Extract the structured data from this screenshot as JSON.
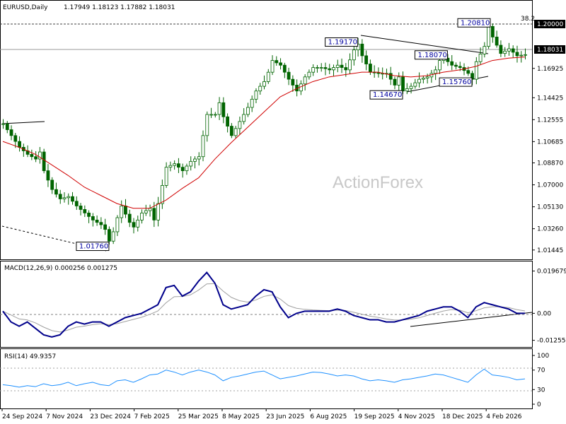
{
  "header": {
    "symbol": "EURUSD,Daily",
    "ohlc": "1.17949 1.18123 1.17882 1.18031"
  },
  "watermark": "ActionForex",
  "colors": {
    "candle": "#006400",
    "ma": "#d00000",
    "macd_line": "#00008b",
    "signal_line": "#a0a0a0",
    "rsi_line": "#1e90ff",
    "grid": "#c0c0c0"
  },
  "price_axis": {
    "ticks": [
      "1.20000",
      "1.18031",
      "1.16925",
      "1.14425",
      "1.12555",
      "1.10685",
      "1.08870",
      "1.07000",
      "1.05130",
      "1.03260",
      "1.01445"
    ],
    "tick_values": [
      1.2,
      1.18031,
      1.16925,
      1.14425,
      1.12555,
      1.10685,
      1.0887,
      1.07,
      1.0513,
      1.0326,
      1.01445
    ],
    "current": "1.18031",
    "level_1200": "1.20000",
    "fib_label": "38.2"
  },
  "date_axis": [
    "24 Sep 2024",
    "7 Nov 2024",
    "23 Dec 2024",
    "7 Feb 2025",
    "25 Mar 2025",
    "8 May 2025",
    "23 Jun 2025",
    "6 Aug 2025",
    "19 Sep 2025",
    "4 Nov 2025",
    "18 Dec 2025",
    "4 Feb 2026"
  ],
  "price_labels": [
    {
      "text": "1.20810",
      "x_idx": 119.5,
      "y_val": 1.2081
    },
    {
      "text": "1.19170",
      "x_idx": 87,
      "y_val": 1.1917
    },
    {
      "text": "1.18070",
      "x_idx": 109,
      "y_val": 1.1807
    },
    {
      "text": "1.15760",
      "x_idx": 115,
      "y_val": 1.1576
    },
    {
      "text": "1.14670",
      "x_idx": 98,
      "y_val": 1.1467
    },
    {
      "text": "1.01760",
      "x_idx": 26,
      "y_val": 1.0176
    }
  ],
  "macd": {
    "title": "MACD(12,26,9) 0.000256 0.001275",
    "ticks": [
      "0.019679",
      "0.00",
      "-0.012552"
    ],
    "tick_values": [
      0.019679,
      0.0,
      -0.012552
    ]
  },
  "rsi": {
    "title": "RSI(14) 49.9357",
    "ticks": [
      "100",
      "70",
      "30",
      "0"
    ],
    "tick_values": [
      100,
      70,
      30,
      0
    ]
  },
  "chart_data": {
    "type": "line",
    "title": "EURUSD,Daily",
    "xlabel": "",
    "ylabel": "",
    "x": [
      "24 Sep 2024",
      "7 Nov 2024",
      "23 Dec 2024",
      "7 Feb 2025",
      "25 Mar 2025",
      "8 May 2025",
      "23 Jun 2025",
      "6 Aug 2025",
      "19 Sep 2025",
      "4 Nov 2025",
      "18 Dec 2025",
      "4 Feb 2026"
    ],
    "ylim": [
      1.0095,
      1.2155
    ],
    "series": [
      {
        "name": "",
        "values": [
          1.12,
          1.085,
          1.04,
          1.035,
          1.08,
          1.125,
          1.155,
          1.17,
          1.175,
          1.155,
          1.17,
          1.181
        ]
      }
    ],
    "price_path": [
      [
        0,
        1.122
      ],
      [
        2,
        1.112
      ],
      [
        4,
        1.102
      ],
      [
        6,
        1.096
      ],
      [
        8,
        1.092
      ],
      [
        9,
        1.098
      ],
      [
        10,
        1.082
      ],
      [
        12,
        1.066
      ],
      [
        14,
        1.058
      ],
      [
        16,
        1.06
      ],
      [
        18,
        1.052
      ],
      [
        20,
        1.046
      ],
      [
        22,
        1.04
      ],
      [
        24,
        1.036
      ],
      [
        25,
        1.032
      ],
      [
        26,
        1.022
      ],
      [
        27,
        1.03
      ],
      [
        28,
        1.042
      ],
      [
        29,
        1.052
      ],
      [
        30,
        1.045
      ],
      [
        31,
        1.038
      ],
      [
        32,
        1.034
      ],
      [
        34,
        1.046
      ],
      [
        36,
        1.05
      ],
      [
        37,
        1.04
      ],
      [
        38,
        1.054
      ],
      [
        40,
        1.085
      ],
      [
        42,
        1.088
      ],
      [
        44,
        1.082
      ],
      [
        46,
        1.09
      ],
      [
        48,
        1.094
      ],
      [
        50,
        1.13
      ],
      [
        52,
        1.13
      ],
      [
        53,
        1.14
      ],
      [
        54,
        1.128
      ],
      [
        55,
        1.12
      ],
      [
        56,
        1.112
      ],
      [
        58,
        1.124
      ],
      [
        60,
        1.136
      ],
      [
        62,
        1.15
      ],
      [
        64,
        1.158
      ],
      [
        65,
        1.166
      ],
      [
        66,
        1.176
      ],
      [
        68,
        1.172
      ],
      [
        70,
        1.16
      ],
      [
        72,
        1.15
      ],
      [
        74,
        1.162
      ],
      [
        76,
        1.17
      ],
      [
        78,
        1.17
      ],
      [
        80,
        1.168
      ],
      [
        82,
        1.172
      ],
      [
        84,
        1.168
      ],
      [
        86,
        1.185
      ],
      [
        87,
        1.19
      ],
      [
        88,
        1.18
      ],
      [
        90,
        1.166
      ],
      [
        92,
        1.165
      ],
      [
        94,
        1.165
      ],
      [
        96,
        1.155
      ],
      [
        97,
        1.162
      ],
      [
        98,
        1.15
      ],
      [
        100,
        1.154
      ],
      [
        102,
        1.16
      ],
      [
        104,
        1.162
      ],
      [
        106,
        1.168
      ],
      [
        107,
        1.176
      ],
      [
        108,
        1.178
      ],
      [
        110,
        1.172
      ],
      [
        112,
        1.17
      ],
      [
        114,
        1.165
      ],
      [
        115,
        1.16
      ],
      [
        116,
        1.175
      ],
      [
        118,
        1.188
      ],
      [
        119,
        1.205
      ],
      [
        120,
        1.196
      ],
      [
        122,
        1.182
      ],
      [
        124,
        1.186
      ],
      [
        126,
        1.18
      ],
      [
        128,
        1.181
      ]
    ],
    "ma_path": [
      [
        0,
        1.107
      ],
      [
        4,
        1.102
      ],
      [
        8,
        1.096
      ],
      [
        12,
        1.087
      ],
      [
        16,
        1.078
      ],
      [
        20,
        1.068
      ],
      [
        24,
        1.061
      ],
      [
        28,
        1.054
      ],
      [
        32,
        1.05
      ],
      [
        36,
        1.05
      ],
      [
        40,
        1.057
      ],
      [
        44,
        1.067
      ],
      [
        48,
        1.076
      ],
      [
        52,
        1.092
      ],
      [
        56,
        1.106
      ],
      [
        60,
        1.119
      ],
      [
        64,
        1.132
      ],
      [
        68,
        1.145
      ],
      [
        72,
        1.152
      ],
      [
        76,
        1.158
      ],
      [
        80,
        1.162
      ],
      [
        84,
        1.164
      ],
      [
        88,
        1.166
      ],
      [
        92,
        1.166
      ],
      [
        96,
        1.163
      ],
      [
        100,
        1.162
      ],
      [
        104,
        1.163
      ],
      [
        108,
        1.166
      ],
      [
        112,
        1.168
      ],
      [
        116,
        1.171
      ],
      [
        120,
        1.176
      ],
      [
        124,
        1.178
      ],
      [
        128,
        1.179
      ]
    ],
    "macd_path": [
      [
        0,
        0.001
      ],
      [
        2,
        -0.004
      ],
      [
        4,
        -0.006
      ],
      [
        6,
        -0.004
      ],
      [
        8,
        -0.007
      ],
      [
        10,
        -0.01
      ],
      [
        12,
        -0.011
      ],
      [
        14,
        -0.01
      ],
      [
        16,
        -0.006
      ],
      [
        18,
        -0.004
      ],
      [
        20,
        -0.005
      ],
      [
        22,
        -0.004
      ],
      [
        24,
        -0.004
      ],
      [
        26,
        -0.006
      ],
      [
        28,
        -0.004
      ],
      [
        30,
        -0.002
      ],
      [
        32,
        -0.001
      ],
      [
        34,
        0.0
      ],
      [
        36,
        0.002
      ],
      [
        38,
        0.004
      ],
      [
        40,
        0.012
      ],
      [
        42,
        0.013
      ],
      [
        44,
        0.008
      ],
      [
        46,
        0.01
      ],
      [
        48,
        0.015
      ],
      [
        50,
        0.019
      ],
      [
        52,
        0.014
      ],
      [
        54,
        0.004
      ],
      [
        56,
        0.002
      ],
      [
        58,
        0.003
      ],
      [
        60,
        0.004
      ],
      [
        62,
        0.008
      ],
      [
        64,
        0.011
      ],
      [
        66,
        0.01
      ],
      [
        68,
        0.003
      ],
      [
        70,
        -0.002
      ],
      [
        72,
        0.0
      ],
      [
        74,
        0.001
      ],
      [
        76,
        0.001
      ],
      [
        78,
        0.001
      ],
      [
        80,
        0.001
      ],
      [
        82,
        0.002
      ],
      [
        84,
        0.001
      ],
      [
        86,
        -0.001
      ],
      [
        88,
        -0.002
      ],
      [
        90,
        -0.003
      ],
      [
        92,
        -0.003
      ],
      [
        94,
        -0.004
      ],
      [
        96,
        -0.004
      ],
      [
        98,
        -0.003
      ],
      [
        100,
        -0.002
      ],
      [
        102,
        -0.001
      ],
      [
        104,
        0.001
      ],
      [
        106,
        0.002
      ],
      [
        108,
        0.003
      ],
      [
        110,
        0.003
      ],
      [
        112,
        0.001
      ],
      [
        114,
        -0.002
      ],
      [
        116,
        0.003
      ],
      [
        118,
        0.005
      ],
      [
        120,
        0.004
      ],
      [
        122,
        0.003
      ],
      [
        124,
        0.002
      ],
      [
        126,
        0.0
      ],
      [
        128,
        0.0
      ]
    ],
    "rsi_path": [
      [
        0,
        40
      ],
      [
        2,
        38
      ],
      [
        4,
        35
      ],
      [
        6,
        38
      ],
      [
        8,
        36
      ],
      [
        10,
        42
      ],
      [
        12,
        38
      ],
      [
        14,
        40
      ],
      [
        16,
        45
      ],
      [
        18,
        38
      ],
      [
        20,
        42
      ],
      [
        22,
        45
      ],
      [
        24,
        40
      ],
      [
        26,
        38
      ],
      [
        28,
        48
      ],
      [
        30,
        50
      ],
      [
        32,
        45
      ],
      [
        34,
        52
      ],
      [
        36,
        60
      ],
      [
        38,
        62
      ],
      [
        40,
        70
      ],
      [
        42,
        66
      ],
      [
        44,
        60
      ],
      [
        46,
        66
      ],
      [
        48,
        70
      ],
      [
        50,
        66
      ],
      [
        52,
        60
      ],
      [
        54,
        48
      ],
      [
        56,
        55
      ],
      [
        58,
        58
      ],
      [
        60,
        62
      ],
      [
        62,
        66
      ],
      [
        64,
        68
      ],
      [
        66,
        60
      ],
      [
        68,
        52
      ],
      [
        70,
        55
      ],
      [
        72,
        58
      ],
      [
        74,
        62
      ],
      [
        76,
        66
      ],
      [
        78,
        65
      ],
      [
        80,
        62
      ],
      [
        82,
        58
      ],
      [
        84,
        60
      ],
      [
        86,
        58
      ],
      [
        88,
        52
      ],
      [
        90,
        48
      ],
      [
        92,
        50
      ],
      [
        94,
        48
      ],
      [
        96,
        45
      ],
      [
        98,
        50
      ],
      [
        100,
        52
      ],
      [
        102,
        55
      ],
      [
        104,
        58
      ],
      [
        106,
        62
      ],
      [
        108,
        60
      ],
      [
        110,
        55
      ],
      [
        112,
        50
      ],
      [
        114,
        45
      ],
      [
        116,
        60
      ],
      [
        118,
        72
      ],
      [
        120,
        60
      ],
      [
        122,
        58
      ],
      [
        124,
        55
      ],
      [
        126,
        50
      ],
      [
        128,
        52
      ]
    ]
  }
}
